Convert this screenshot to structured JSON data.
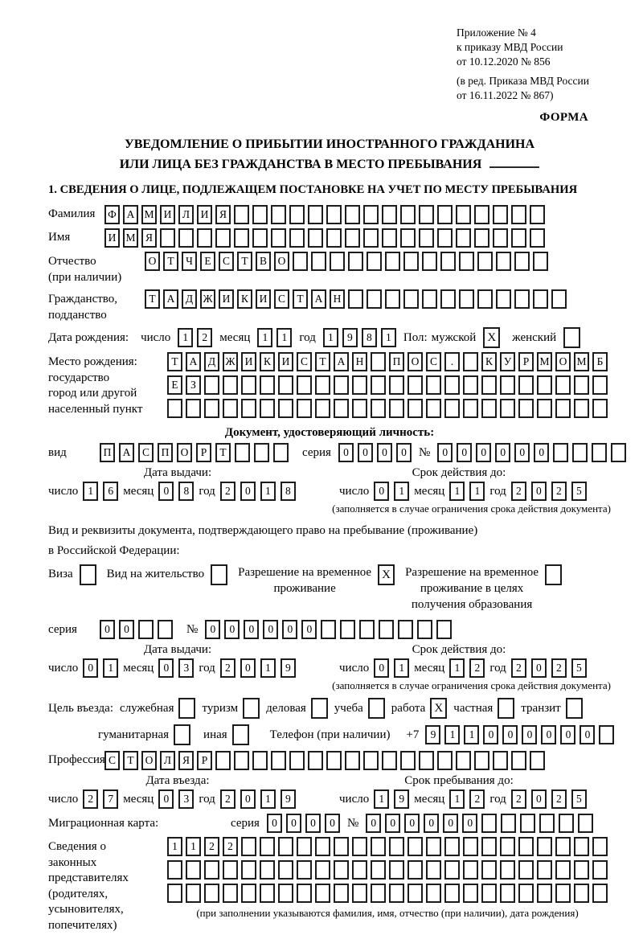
{
  "doc": {
    "appendix": [
      "Приложение № 4",
      "к приказу МВД России",
      "от 10.12.2020 № 856"
    ],
    "revision": [
      "(в ред. Приказа МВД России",
      "от 16.11.2022 № 867)"
    ],
    "forma": "ФОРМА",
    "title1": "УВЕДОМЛЕНИЕ О ПРИБЫТИИ ИНОСТРАННОГО ГРАЖДАНИНА",
    "title2": "ИЛИ ЛИЦА БЕЗ ГРАЖДАНСТВА В МЕСТО ПРЕБЫВАНИЯ",
    "section1": "1. СВЕДЕНИЯ О ЛИЦЕ, ПОДЛЕЖАЩЕМ ПОСТАНОВКЕ НА УЧЕТ ПО МЕСТУ ПРЕБЫВАНИЯ"
  },
  "labels": {
    "day": "число",
    "month": "месяц",
    "year": "год",
    "series": "серия",
    "number": "№",
    "issue_date": "Дата выдачи:",
    "valid_until": "Срок действия до:",
    "restriction_note": "(заполняется в случае ограничения срока действия документа)"
  },
  "person": {
    "surname": {
      "label": "Фамилия",
      "value": "ФАМИЛИЯ",
      "cells": 24
    },
    "given_name": {
      "label": "Имя",
      "value": "ИМЯ",
      "cells": 24
    },
    "patronymic": {
      "label_lines": [
        "Отчество",
        "(при наличии)"
      ],
      "value": "ОТЧЕСТВО",
      "cells": 22
    },
    "citizenship": {
      "label_lines": [
        "Гражданство,",
        "подданство"
      ],
      "value": "ТАДЖИКИСТАН",
      "cells": 23
    },
    "birth_date": {
      "label": "Дата рождения:",
      "day": "12",
      "month": "11",
      "year": "1981"
    },
    "sex": {
      "label": "Пол:",
      "male_label": "мужской",
      "male": "X",
      "female_label": "женский",
      "female": ""
    },
    "birth_place": {
      "label_lines": [
        "Место рождения:",
        "государство",
        "город или другой",
        "населенный пункт"
      ],
      "rows": [
        {
          "value": "ТАДЖИКИСТАН ПОС. КУРМОМБ",
          "cells": 24
        },
        {
          "value": "ЕЗ",
          "cells": 24
        },
        {
          "value": "",
          "cells": 24
        }
      ]
    }
  },
  "identity_doc": {
    "header": "Документ, удостоверяющий личность:",
    "kind_label": "вид",
    "kind": {
      "value": "ПАСПОРТ",
      "cells": 10
    },
    "series": {
      "value": "0000",
      "cells": 4
    },
    "number": {
      "value": "000000",
      "cells": 10
    },
    "issue": {
      "day": "16",
      "month": "08",
      "year": "2018"
    },
    "valid": {
      "day": "01",
      "month": "11",
      "year": "2025"
    }
  },
  "residence_doc": {
    "intro1": "Вид и реквизиты документа, подтверждающего право на пребывание (проживание)",
    "intro2": "в Российской Федерации:",
    "options": [
      {
        "label": "Виза",
        "checked": ""
      },
      {
        "label": "Вид на жительство",
        "checked": ""
      },
      {
        "label_lines": [
          "Разрешение на временное",
          "проживание"
        ],
        "checked": "X"
      },
      {
        "label_lines": [
          "Разрешение на временное",
          "проживание в целях",
          "получения образования"
        ],
        "checked": ""
      }
    ],
    "series": {
      "value": "00",
      "cells": 4
    },
    "number": {
      "value": "000000",
      "cells": 13
    },
    "issue": {
      "day": "01",
      "month": "03",
      "year": "2019"
    },
    "valid": {
      "day": "01",
      "month": "12",
      "year": "2025"
    }
  },
  "visit": {
    "purpose_label": "Цель въезда:",
    "purposes_row1": [
      {
        "label": "служебная",
        "checked": ""
      },
      {
        "label": "туризм",
        "checked": ""
      },
      {
        "label": "деловая",
        "checked": ""
      },
      {
        "label": "учеба",
        "checked": ""
      },
      {
        "label": "работа",
        "checked": "X"
      },
      {
        "label": "частная",
        "checked": ""
      },
      {
        "label": "транзит",
        "checked": ""
      }
    ],
    "purposes_row2": [
      {
        "label": "гуманитарная",
        "checked": ""
      },
      {
        "label": "иная",
        "checked": ""
      }
    ],
    "phone_label": "Телефон (при наличии)",
    "phone_prefix": "+7",
    "phone": {
      "value": "911000000",
      "cells": 10
    },
    "profession_label": "Профессия",
    "profession": {
      "value": "СТОЛЯР",
      "cells": 24
    },
    "entry_date_header": "Дата въезда:",
    "stay_until_header": "Срок пребывания до:",
    "entry": {
      "day": "27",
      "month": "03",
      "year": "2019"
    },
    "stay_until": {
      "day": "19",
      "month": "12",
      "year": "2025"
    }
  },
  "migration_card": {
    "label": "Миграционная карта:",
    "series": {
      "value": "0000",
      "cells": 4
    },
    "number": {
      "value": "000000",
      "cells": 12
    }
  },
  "representatives": {
    "label_lines": [
      "Сведения о",
      "законных",
      "представителях",
      "(родителях,",
      "усыновителях,",
      "попечителях)"
    ],
    "rows": [
      {
        "value": "1122",
        "cells": 24
      },
      {
        "value": "",
        "cells": 24
      },
      {
        "value": "",
        "cells": 24
      }
    ],
    "note": "(при заполнении указываются фамилия, имя, отчество (при наличии), дата рождения)"
  }
}
